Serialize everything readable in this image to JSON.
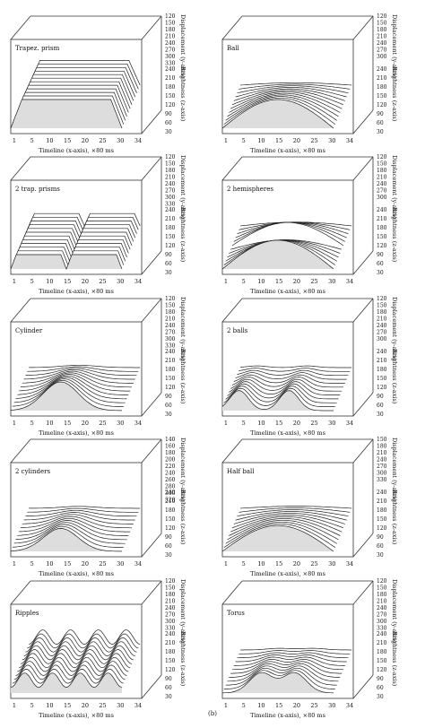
{
  "figure": {
    "label": "(b)",
    "common": {
      "xlabel": "Timeline (x-axis), ×80 ms",
      "ylabel": "Displacement (y-axis)",
      "zlabel": "Brightness (z-axis)",
      "x_ticks": [
        "1",
        "5",
        "10",
        "15",
        "20",
        "25",
        "30",
        "34"
      ],
      "z_ticks": [
        "30",
        "60",
        "90",
        "120",
        "150",
        "180",
        "210",
        "240"
      ]
    }
  },
  "chart_data": [
    {
      "type": "area",
      "title": "Trapez. prism",
      "shape": "trapezoid",
      "count": 1,
      "y_ticks": [
        "120",
        "150",
        "180",
        "210",
        "240",
        "270",
        "300",
        "330"
      ]
    },
    {
      "type": "area",
      "title": "Ball",
      "shape": "dome",
      "count": 1,
      "y_ticks": [
        "120",
        "150",
        "180",
        "210",
        "240",
        "270",
        "300"
      ]
    },
    {
      "type": "area",
      "title": "2 trap. prisms",
      "shape": "trapezoid",
      "count": 2,
      "y_ticks": [
        "120",
        "150",
        "180",
        "210",
        "240",
        "270",
        "300",
        "330"
      ]
    },
    {
      "type": "area",
      "title": "2 hemispheres",
      "shape": "dome",
      "count": 2,
      "y_ticks": [
        "120",
        "150",
        "180",
        "210",
        "240",
        "270",
        "300"
      ]
    },
    {
      "type": "area",
      "title": "Cylinder",
      "shape": "bump",
      "count": 1,
      "y_ticks": [
        "120",
        "150",
        "180",
        "210",
        "240",
        "270",
        "300",
        "330"
      ]
    },
    {
      "type": "area",
      "title": "2 balls",
      "shape": "twobump",
      "count": 2,
      "y_ticks": [
        "120",
        "150",
        "180",
        "210",
        "240",
        "270",
        "300"
      ]
    },
    {
      "type": "area",
      "title": "2 cylinders",
      "shape": "bump",
      "count": 2,
      "y_ticks": [
        "140",
        "160",
        "180",
        "200",
        "220",
        "240",
        "260",
        "280",
        "300",
        "320"
      ]
    },
    {
      "type": "area",
      "title": "Half ball",
      "shape": "halfball",
      "count": 1,
      "y_ticks": [
        "150",
        "180",
        "210",
        "240",
        "270",
        "300",
        "330"
      ]
    },
    {
      "type": "area",
      "title": "Ripples",
      "shape": "ripple",
      "count": 4,
      "y_ticks": [
        "120",
        "150",
        "180",
        "210",
        "240",
        "270",
        "300",
        "330"
      ]
    },
    {
      "type": "area",
      "title": "Torus",
      "shape": "torus",
      "count": 1,
      "y_ticks": [
        "120",
        "150",
        "180",
        "210",
        "240",
        "270",
        "300",
        "330"
      ]
    }
  ]
}
